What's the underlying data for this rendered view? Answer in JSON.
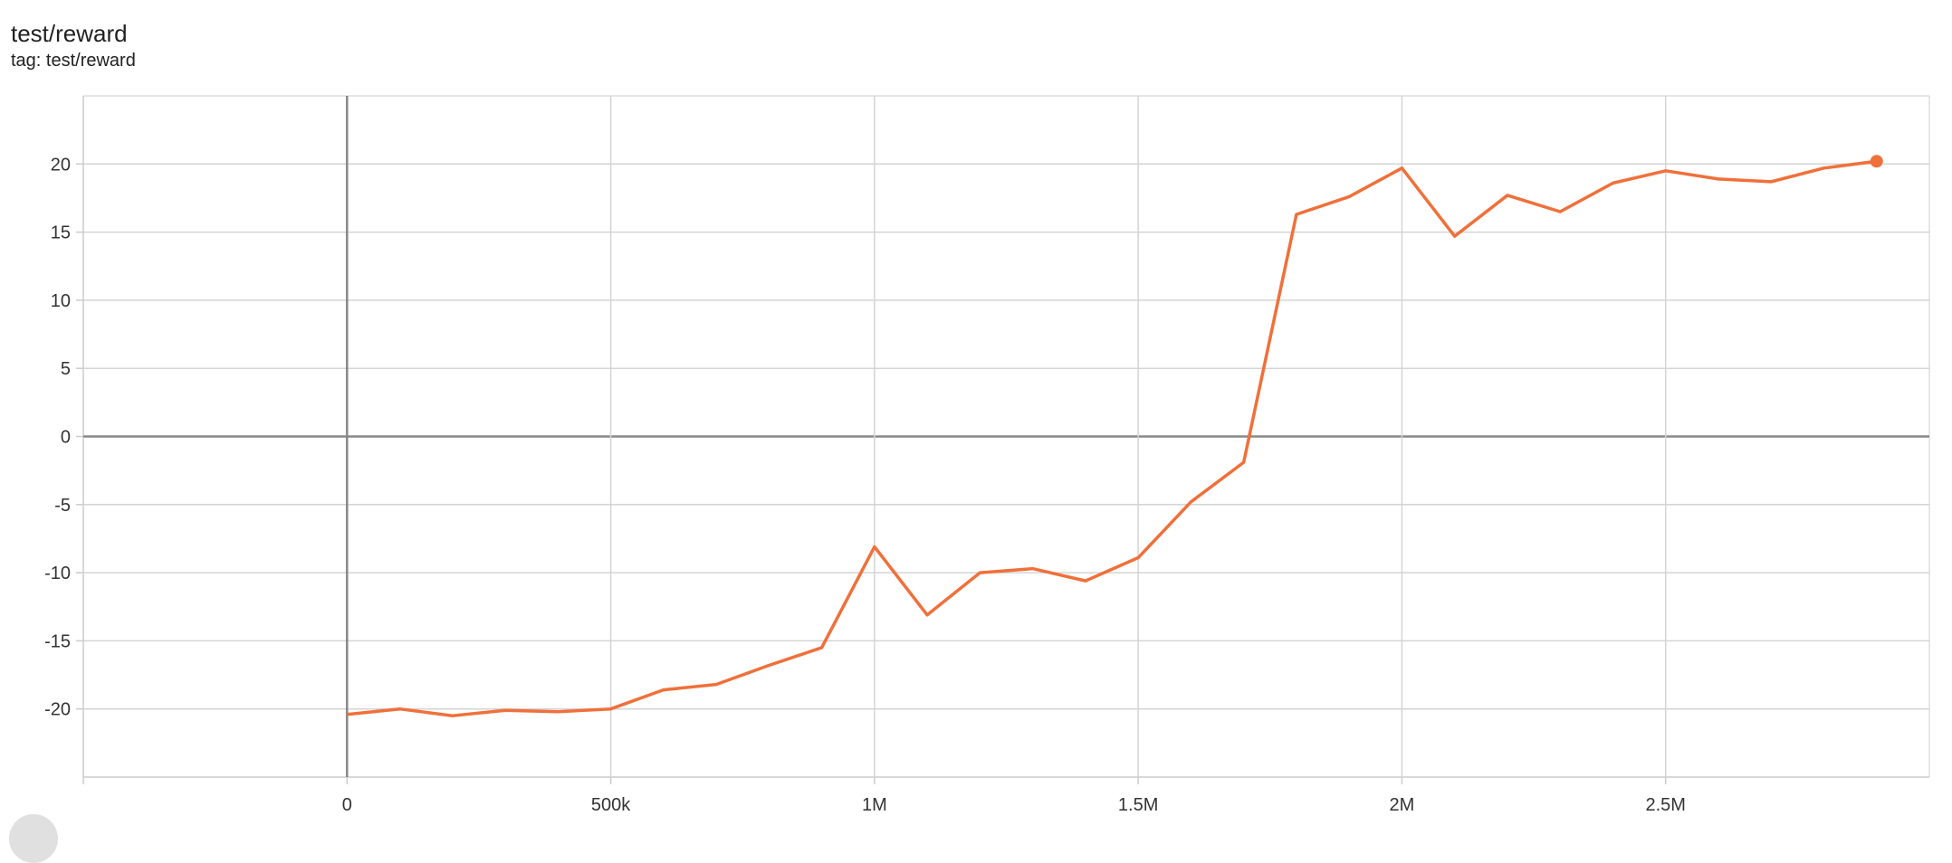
{
  "header": {
    "title": "test/reward",
    "subtitle": "tag: test/reward"
  },
  "chart_data": {
    "type": "line",
    "title": "test/reward",
    "xlabel": "",
    "ylabel": "",
    "xlim": [
      -500000,
      3000000
    ],
    "ylim": [
      -25,
      25
    ],
    "grid": true,
    "x_ticks": [
      0,
      500000,
      1000000,
      1500000,
      2000000,
      2500000
    ],
    "x_tick_labels": [
      "0",
      "500k",
      "1M",
      "1.5M",
      "2M",
      "2.5M"
    ],
    "y_ticks": [
      -20,
      -15,
      -10,
      -5,
      0,
      5,
      10,
      15,
      20
    ],
    "y_tick_labels": [
      "-20",
      "-15",
      "-10",
      "-5",
      "0",
      "5",
      "10",
      "15",
      "20"
    ],
    "color": "#f0703a",
    "series": [
      {
        "x": [
          0,
          100000,
          200000,
          300000,
          400000,
          500000,
          600000,
          700000,
          800000,
          900000,
          1000000,
          1100000,
          1200000,
          1300000,
          1400000,
          1500000,
          1600000,
          1700000,
          1800000,
          1900000,
          2000000,
          2100000,
          2200000,
          2300000,
          2400000,
          2500000,
          2600000,
          2700000,
          2800000,
          2900000
        ],
        "y": [
          -20.4,
          -20.0,
          -20.5,
          -20.1,
          -20.2,
          -20.0,
          -18.6,
          -18.2,
          -16.8,
          -15.5,
          -8.1,
          -13.1,
          -10.0,
          -9.7,
          -10.6,
          -8.9,
          -4.8,
          -1.9,
          16.3,
          17.6,
          19.7,
          14.7,
          17.7,
          16.5,
          18.6,
          19.5,
          18.9,
          18.7,
          19.7,
          20.2
        ]
      }
    ]
  }
}
